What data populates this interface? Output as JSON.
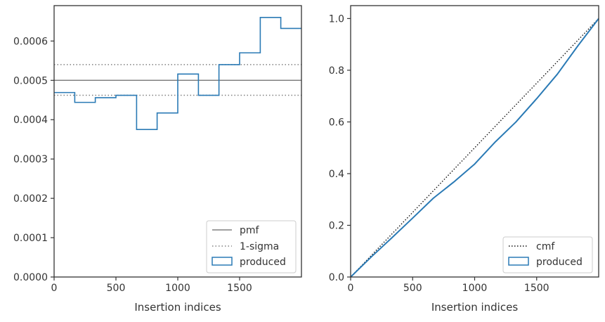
{
  "colors": {
    "produced": "#2a7ab5",
    "reference": "#808080",
    "cmf": "#111111",
    "axes": "#333333"
  },
  "chart_data": [
    {
      "type": "step",
      "xlabel": "Insertion indices",
      "ylabel": "",
      "xlim": [
        0,
        2000
      ],
      "ylim": [
        0,
        0.00069
      ],
      "xticks": [
        0,
        500,
        1000,
        1500
      ],
      "xtick_labels": [
        "0",
        "500",
        "1000",
        "1500"
      ],
      "yticks": [
        0,
        0.0001,
        0.0002,
        0.0003,
        0.0004,
        0.0005,
        0.0006
      ],
      "ytick_labels": [
        "0.0000",
        "0.0001",
        "0.0002",
        "0.0003",
        "0.0004",
        "0.0005",
        "0.0006"
      ],
      "bin_edges": [
        0,
        167,
        333,
        500,
        667,
        833,
        1000,
        1167,
        1333,
        1500,
        1667,
        1833,
        2000
      ],
      "series": [
        {
          "name": "produced",
          "style": "step",
          "values": [
            0.000469,
            0.000444,
            0.000456,
            0.000462,
            0.000375,
            0.000417,
            0.000516,
            0.000462,
            0.00054,
            0.00057,
            0.00066,
            0.000632
          ]
        }
      ],
      "reference_lines": [
        {
          "name": "pmf",
          "y": 0.0005,
          "style": "solid"
        },
        {
          "name": "1-sigma",
          "y": 0.00054,
          "style": "dotted"
        },
        {
          "name": "1-sigma",
          "y": 0.000462,
          "style": "dotted"
        }
      ],
      "legend": {
        "position": "lower-right",
        "entries": [
          {
            "label": "pmf",
            "symbol": "solid-line"
          },
          {
            "label": "1-sigma",
            "symbol": "dotted-line"
          },
          {
            "label": "produced",
            "symbol": "box"
          }
        ]
      },
      "grid": false
    },
    {
      "type": "line",
      "xlabel": "Insertion indices",
      "ylabel": "",
      "xlim": [
        0,
        2000
      ],
      "ylim": [
        0,
        1.05
      ],
      "xticks": [
        0,
        500,
        1000,
        1500
      ],
      "xtick_labels": [
        "0",
        "500",
        "1000",
        "1500"
      ],
      "yticks": [
        0,
        0.2,
        0.4,
        0.6,
        0.8,
        1.0
      ],
      "ytick_labels": [
        "0.0",
        "0.2",
        "0.4",
        "0.6",
        "0.8",
        "1.0"
      ],
      "series": [
        {
          "name": "cmf",
          "style": "dotted",
          "x": [
            0,
            2000
          ],
          "y": [
            0,
            1.0
          ]
        },
        {
          "name": "produced",
          "style": "step",
          "x": [
            0,
            167,
            333,
            500,
            667,
            833,
            1000,
            1167,
            1333,
            1500,
            1667,
            1833,
            2000
          ],
          "y": [
            0,
            0.078,
            0.152,
            0.228,
            0.305,
            0.368,
            0.437,
            0.523,
            0.6,
            0.69,
            0.785,
            0.895,
            1.0
          ]
        }
      ],
      "legend": {
        "position": "lower-right",
        "entries": [
          {
            "label": "cmf",
            "symbol": "dotted-line"
          },
          {
            "label": "produced",
            "symbol": "box"
          }
        ]
      },
      "grid": false
    }
  ]
}
